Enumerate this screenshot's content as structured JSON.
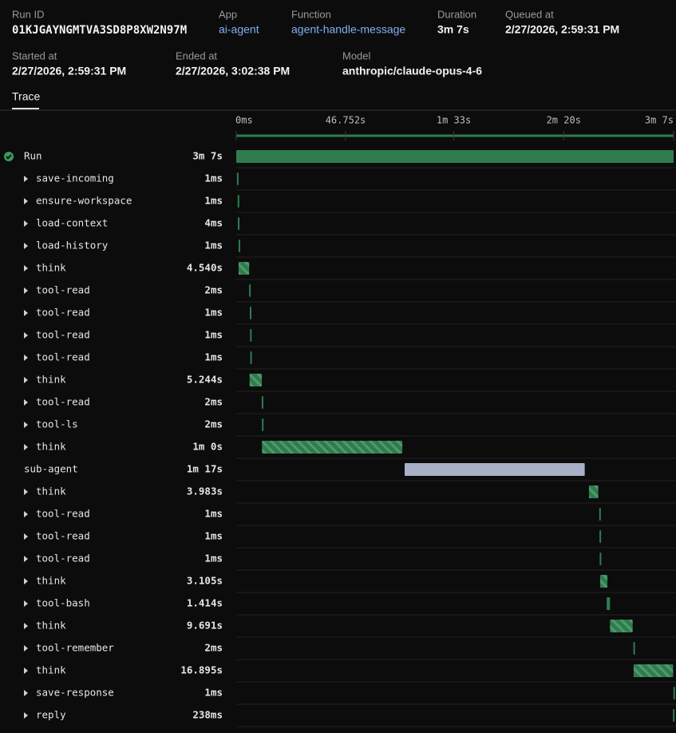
{
  "header": {
    "fields": [
      {
        "label": "Run ID",
        "value": "01KJGAYNGMTVA3SD8P8XW2N97M"
      },
      {
        "label": "App",
        "value": "ai-agent",
        "color": "#7fb0f2"
      },
      {
        "label": "Function",
        "value": "agent-handle-message",
        "color": "#7fb0f2"
      },
      {
        "label": "Duration",
        "value": "3m 7s"
      },
      {
        "label": "Queued at",
        "value": "2/27/2026, 2:59:31 PM"
      },
      {
        "label": "Started at",
        "value": "2/27/2026, 2:59:31 PM"
      },
      {
        "label": "Ended at",
        "value": "2/27/2026, 3:02:38 PM"
      },
      {
        "label": "Model",
        "value": "anthropic/claude-opus-4-6"
      }
    ]
  },
  "tabs": [
    "Trace"
  ],
  "chart_data": {
    "type": "timeline",
    "xlim": [
      0,
      187
    ],
    "xticks": [
      {
        "value": 0,
        "label": "0ms"
      },
      {
        "value": 46.752,
        "label": "46.752s"
      },
      {
        "value": 93,
        "label": "1m 33s"
      },
      {
        "value": 140,
        "label": "2m 20s"
      },
      {
        "value": 187,
        "label": "3m 7s"
      }
    ],
    "spans": [
      {
        "name": "Run",
        "start": 0,
        "duration": 187,
        "duration_label": "3m 7s",
        "color": "#2f7d4e",
        "expandable": false
      },
      {
        "name": "save-incoming",
        "start": 0.3,
        "duration": 0.001,
        "duration_label": "1ms",
        "color": "#2f7d4e",
        "expandable": true
      },
      {
        "name": "ensure-workspace",
        "start": 0.6,
        "duration": 0.001,
        "duration_label": "1ms",
        "color": "#2f7d4e",
        "expandable": true
      },
      {
        "name": "load-context",
        "start": 0.7,
        "duration": 0.004,
        "duration_label": "4ms",
        "color": "#2f7d4e",
        "expandable": true
      },
      {
        "name": "load-history",
        "start": 1.0,
        "duration": 0.001,
        "duration_label": "1ms",
        "color": "#2f7d4e",
        "expandable": true
      },
      {
        "name": "think",
        "start": 1.0,
        "duration": 4.54,
        "duration_label": "4.540s",
        "color": "#2f7d4e",
        "hatched": true,
        "expandable": true
      },
      {
        "name": "tool-read",
        "start": 5.5,
        "duration": 0.002,
        "duration_label": "2ms",
        "color": "#2f7d4e",
        "expandable": true
      },
      {
        "name": "tool-read",
        "start": 5.8,
        "duration": 0.001,
        "duration_label": "1ms",
        "color": "#2f7d4e",
        "expandable": true
      },
      {
        "name": "tool-read",
        "start": 5.9,
        "duration": 0.001,
        "duration_label": "1ms",
        "color": "#2f7d4e",
        "expandable": true
      },
      {
        "name": "tool-read",
        "start": 6.0,
        "duration": 0.001,
        "duration_label": "1ms",
        "color": "#2f7d4e",
        "expandable": true
      },
      {
        "name": "think",
        "start": 5.7,
        "duration": 5.244,
        "duration_label": "5.244s",
        "color": "#2f7d4e",
        "hatched": true,
        "expandable": true
      },
      {
        "name": "tool-read",
        "start": 10.9,
        "duration": 0.002,
        "duration_label": "2ms",
        "color": "#2f7d4e",
        "expandable": true
      },
      {
        "name": "tool-ls",
        "start": 11.0,
        "duration": 0.002,
        "duration_label": "2ms",
        "color": "#2f7d4e",
        "expandable": true
      },
      {
        "name": "think",
        "start": 11.0,
        "duration": 60,
        "duration_label": "1m 0s",
        "color": "#2f7d4e",
        "hatched": true,
        "expandable": true
      },
      {
        "name": "sub-agent",
        "start": 72,
        "duration": 77,
        "duration_label": "1m 17s",
        "color": "#a7b0c6",
        "expandable": false
      },
      {
        "name": "think",
        "start": 150.8,
        "duration": 3.983,
        "duration_label": "3.983s",
        "color": "#2f7d4e",
        "hatched": true,
        "expandable": true
      },
      {
        "name": "tool-read",
        "start": 155.2,
        "duration": 0.001,
        "duration_label": "1ms",
        "color": "#2f7d4e",
        "expandable": true
      },
      {
        "name": "tool-read",
        "start": 155.3,
        "duration": 0.001,
        "duration_label": "1ms",
        "color": "#2f7d4e",
        "expandable": true
      },
      {
        "name": "tool-read",
        "start": 155.4,
        "duration": 0.001,
        "duration_label": "1ms",
        "color": "#2f7d4e",
        "expandable": true
      },
      {
        "name": "think",
        "start": 155.6,
        "duration": 3.105,
        "duration_label": "3.105s",
        "color": "#2f7d4e",
        "hatched": true,
        "expandable": true
      },
      {
        "name": "tool-bash",
        "start": 158.4,
        "duration": 1.414,
        "duration_label": "1.414s",
        "color": "#2f7d4e",
        "expandable": true
      },
      {
        "name": "think",
        "start": 159.8,
        "duration": 9.691,
        "duration_label": "9.691s",
        "color": "#2f7d4e",
        "hatched": true,
        "expandable": true
      },
      {
        "name": "tool-remember",
        "start": 169.8,
        "duration": 0.002,
        "duration_label": "2ms",
        "color": "#2f7d4e",
        "expandable": true
      },
      {
        "name": "think",
        "start": 169.9,
        "duration": 16.895,
        "duration_label": "16.895s",
        "color": "#2f7d4e",
        "hatched": true,
        "expandable": true
      },
      {
        "name": "save-response",
        "start": 186.9,
        "duration": 0.001,
        "duration_label": "1ms",
        "color": "#2f7d4e",
        "expandable": true
      },
      {
        "name": "reply",
        "start": 186.7,
        "duration": 0.238,
        "duration_label": "238ms",
        "color": "#2f7d4e",
        "expandable": true
      }
    ]
  }
}
